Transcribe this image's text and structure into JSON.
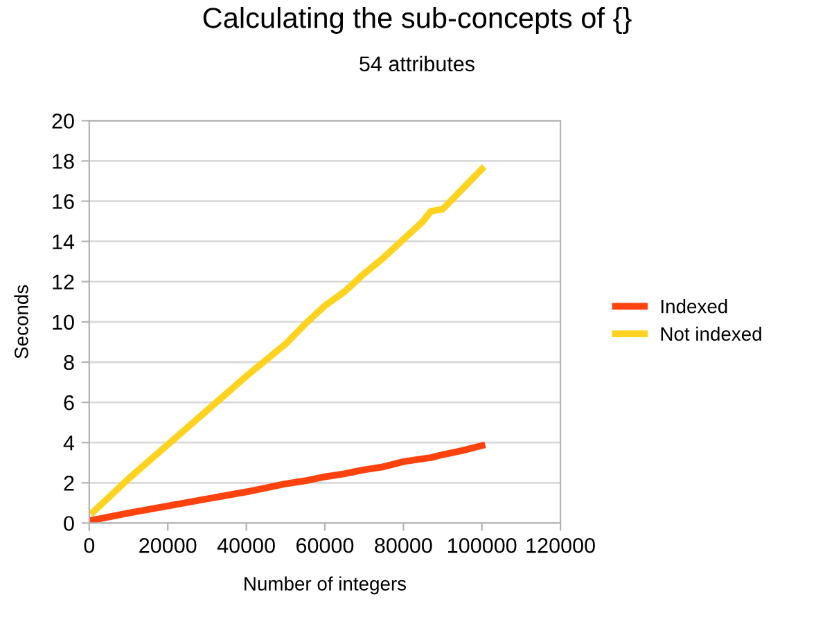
{
  "chart_data": {
    "type": "line",
    "title": "Calculating the sub-concepts of {}",
    "subtitle": "54 attributes",
    "xlabel": "Number of integers",
    "ylabel": "Seconds",
    "x": [
      1000,
      10000,
      20000,
      30000,
      40000,
      50000,
      55000,
      60000,
      65000,
      70000,
      75000,
      80000,
      85000,
      87000,
      90000,
      95000,
      100000
    ],
    "series": [
      {
        "name": "Indexed",
        "color": "#ff420e",
        "values": [
          0.15,
          0.5,
          0.85,
          1.2,
          1.55,
          1.95,
          2.1,
          2.3,
          2.45,
          2.65,
          2.8,
          3.05,
          3.2,
          3.25,
          3.4,
          3.6,
          3.85
        ]
      },
      {
        "name": "Not indexed",
        "color": "#ffd320",
        "values": [
          0.55,
          2.2,
          3.9,
          5.6,
          7.3,
          8.9,
          9.9,
          10.8,
          11.5,
          12.4,
          13.2,
          14.1,
          15.0,
          15.5,
          15.6,
          16.6,
          17.6
        ]
      }
    ],
    "xlim": [
      0,
      120000
    ],
    "xticks": [
      0,
      20000,
      40000,
      60000,
      80000,
      100000,
      120000
    ],
    "ylim": [
      0,
      20
    ],
    "yticks": [
      0,
      2,
      4,
      6,
      8,
      10,
      12,
      14,
      16,
      18,
      20
    ],
    "grid": "y",
    "legend": "right",
    "marker": "none",
    "line_style": "solid"
  }
}
